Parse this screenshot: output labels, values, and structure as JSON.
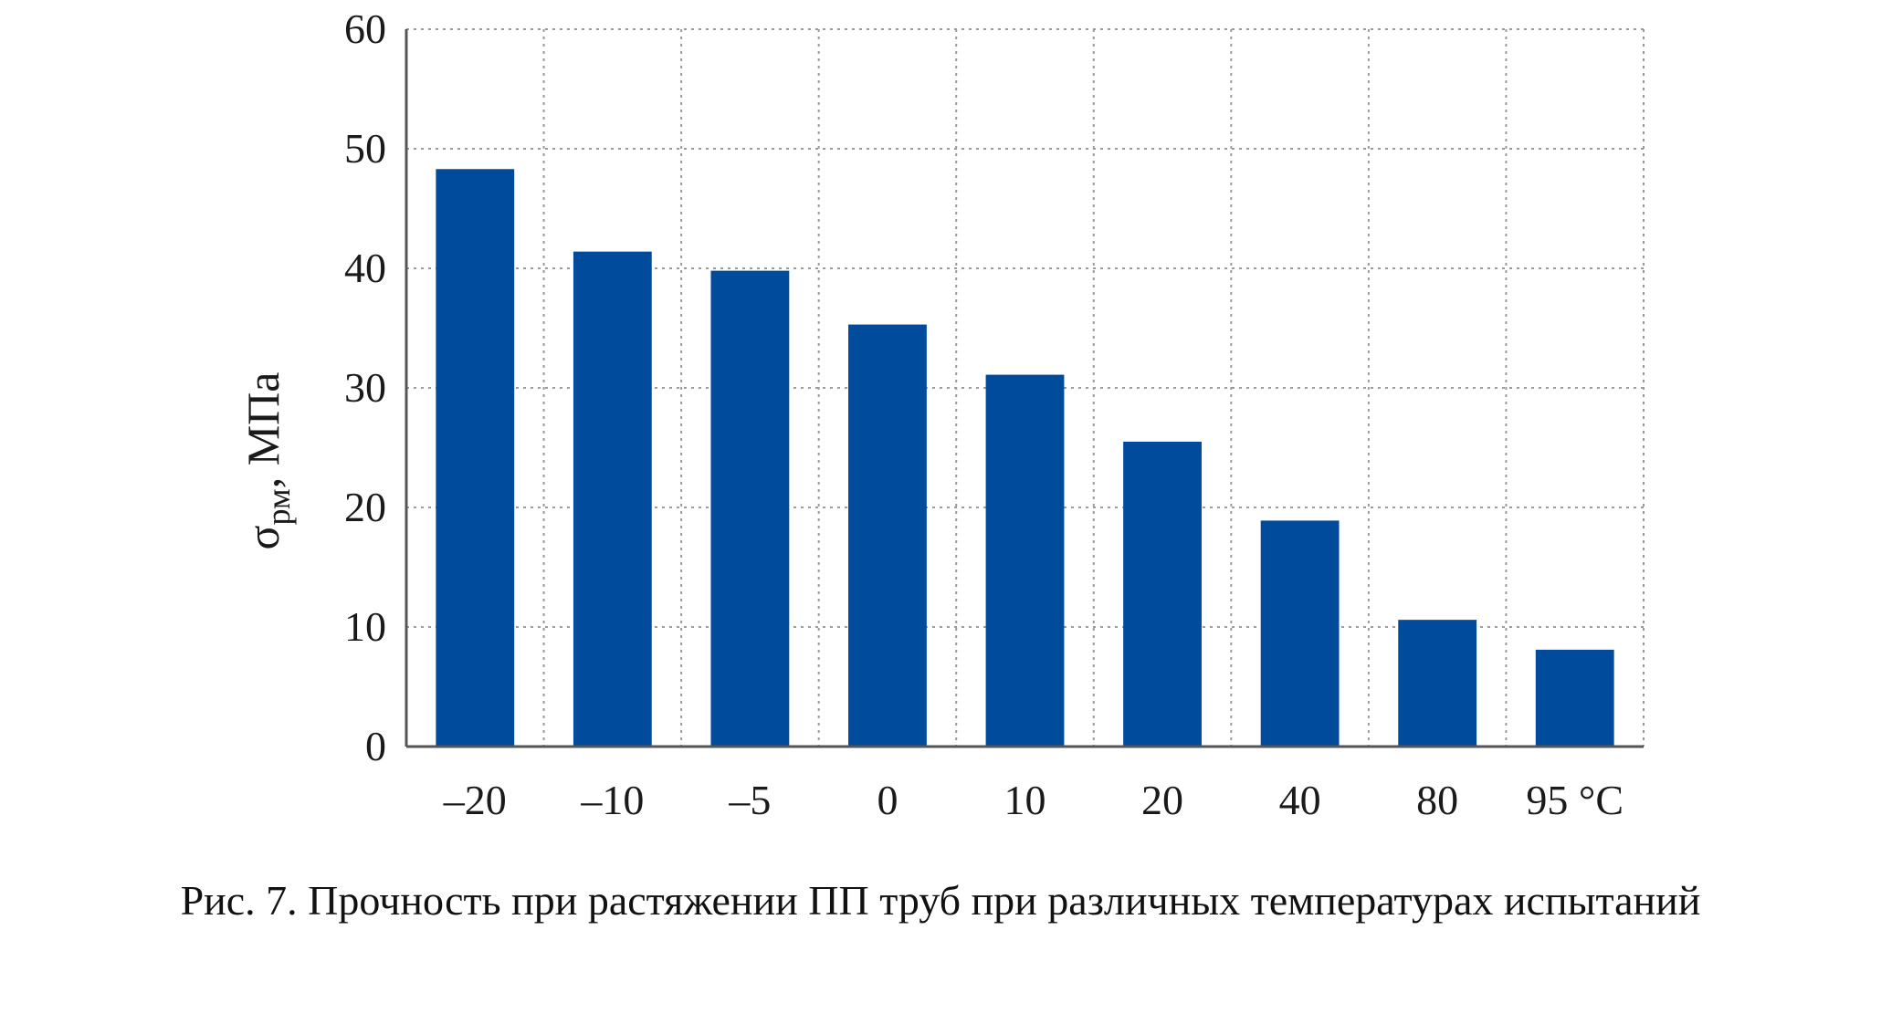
{
  "caption": "Рис. 7. Прочность при растяжении ПП труб при различных температурах испытаний",
  "chart_data": {
    "type": "bar",
    "categories": [
      "–20",
      "–10",
      "–5",
      "0",
      "10",
      "20",
      "40",
      "80",
      "95 °C"
    ],
    "values": [
      48.3,
      41.4,
      39.8,
      35.3,
      31.1,
      25.5,
      18.9,
      10.6,
      8.1
    ],
    "ylabel_main": "σ",
    "ylabel_sub": "рм",
    "ylabel_rest": ", МПа",
    "ylim": [
      0,
      60
    ],
    "yticks": [
      "0",
      "10",
      "20",
      "30",
      "40",
      "50",
      "60"
    ],
    "grid": true,
    "bar_color": "#004b9b"
  }
}
